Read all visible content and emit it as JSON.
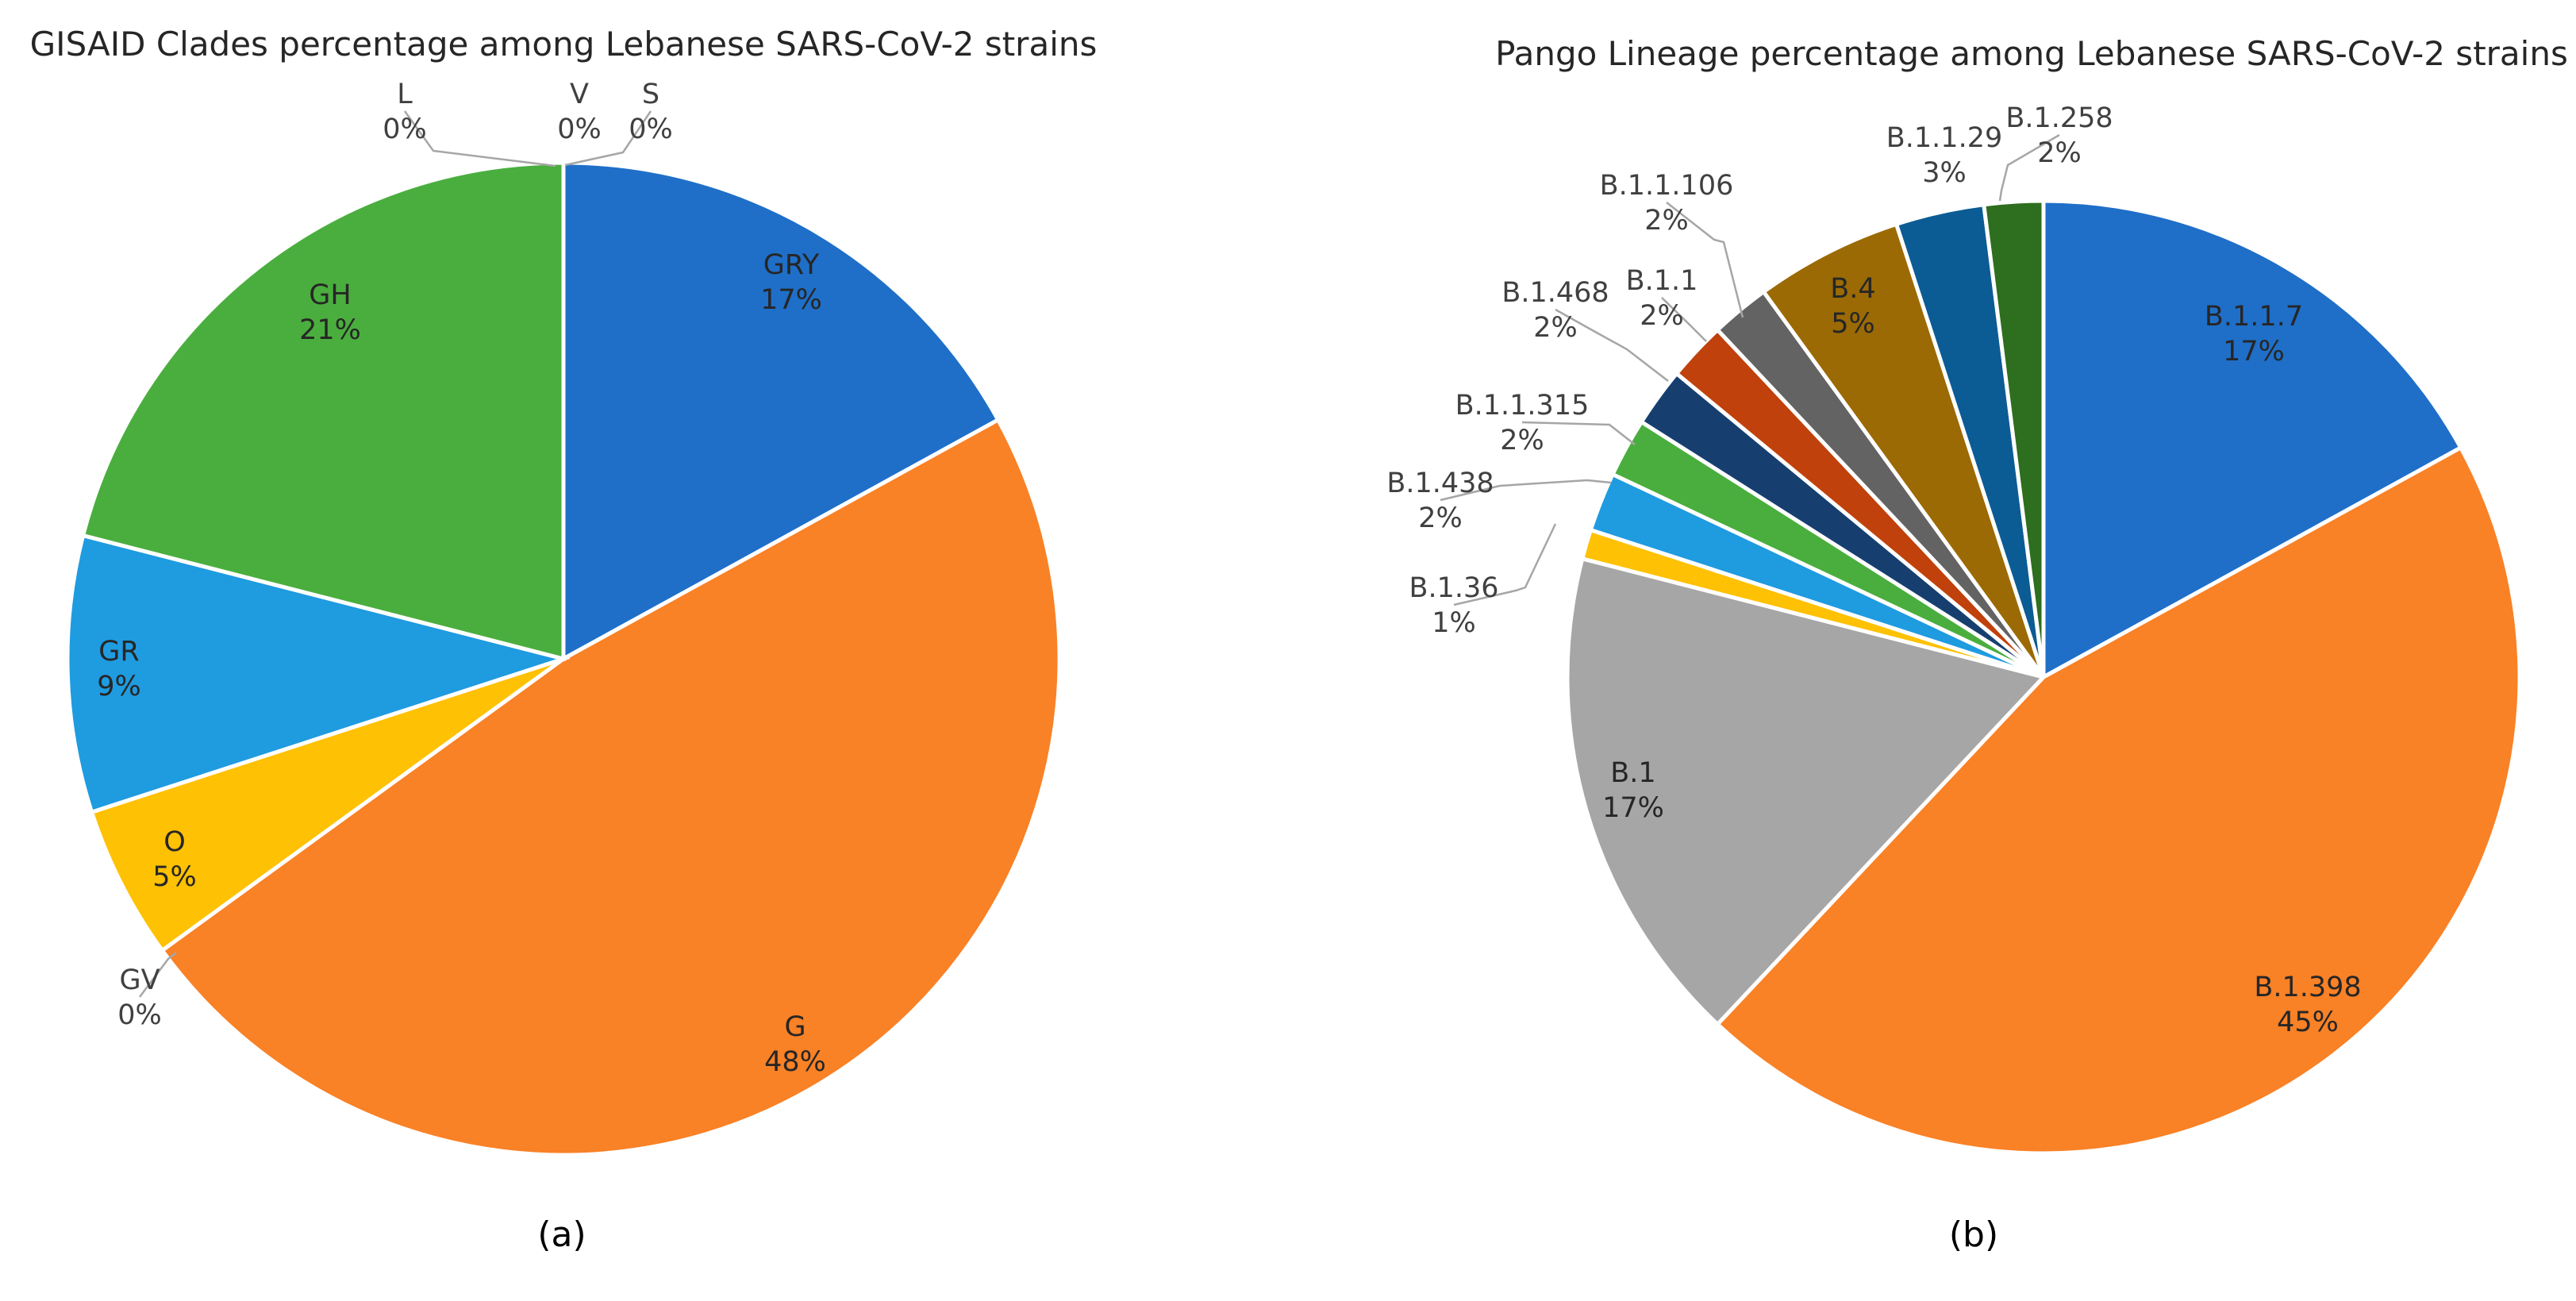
{
  "chart_data": [
    {
      "type": "pie",
      "panel": "(a)",
      "title": "GISAID Clades percentage among Lebanese SARS-CoV-2 strains",
      "start": "top",
      "direction": "clockwise",
      "slices": [
        {
          "label": "GRY",
          "value": 17,
          "pct": "17%",
          "color": "#1f6fc8"
        },
        {
          "label": "G",
          "value": 48,
          "pct": "48%",
          "color": "#f98126"
        },
        {
          "label": "GV",
          "value": 0,
          "pct": "0%",
          "color": "#7f7f7f"
        },
        {
          "label": "O",
          "value": 5,
          "pct": "5%",
          "color": "#fec103"
        },
        {
          "label": "GR",
          "value": 9,
          "pct": "9%",
          "color": "#1f9be0"
        },
        {
          "label": "GH",
          "value": 21,
          "pct": "21%",
          "color": "#4aae3e"
        },
        {
          "label": "L",
          "value": 0,
          "pct": "0%",
          "color": "#1f4e79"
        },
        {
          "label": "V",
          "value": 0,
          "pct": "0%",
          "color": "#8c2d04"
        },
        {
          "label": "S",
          "value": 0,
          "pct": "0%",
          "color": "#595959"
        }
      ]
    },
    {
      "type": "pie",
      "panel": "(b)",
      "title": "Pango Lineage percentage among Lebanese SARS-CoV-2 strains",
      "start": "top",
      "direction": "clockwise",
      "slices": [
        {
          "label": "B.1.1.7",
          "value": 17,
          "pct": "17%",
          "color": "#1f6fc8"
        },
        {
          "label": "B.1.398",
          "value": 45,
          "pct": "45%",
          "color": "#f98126"
        },
        {
          "label": "B.1",
          "value": 17,
          "pct": "17%",
          "color": "#a6a6a6"
        },
        {
          "label": "B.1.36",
          "value": 1,
          "pct": "1%",
          "color": "#fec103"
        },
        {
          "label": "B.1.438",
          "value": 2,
          "pct": "2%",
          "color": "#1f9be0"
        },
        {
          "label": "B.1.1.315",
          "value": 2,
          "pct": "2%",
          "color": "#4aae3e"
        },
        {
          "label": "B.1.468",
          "value": 2,
          "pct": "2%",
          "color": "#163f70"
        },
        {
          "label": "B.1.1",
          "value": 2,
          "pct": "2%",
          "color": "#c0410c"
        },
        {
          "label": "B.1.1.106",
          "value": 2,
          "pct": "2%",
          "color": "#636363"
        },
        {
          "label": "B.4",
          "value": 5,
          "pct": "5%",
          "color": "#9b6a04"
        },
        {
          "label": "B.1.1.29",
          "value": 3,
          "pct": "3%",
          "color": "#0b5c94"
        },
        {
          "label": "B.1.258",
          "value": 2,
          "pct": "2%",
          "color": "#2e6e1f"
        }
      ]
    }
  ]
}
